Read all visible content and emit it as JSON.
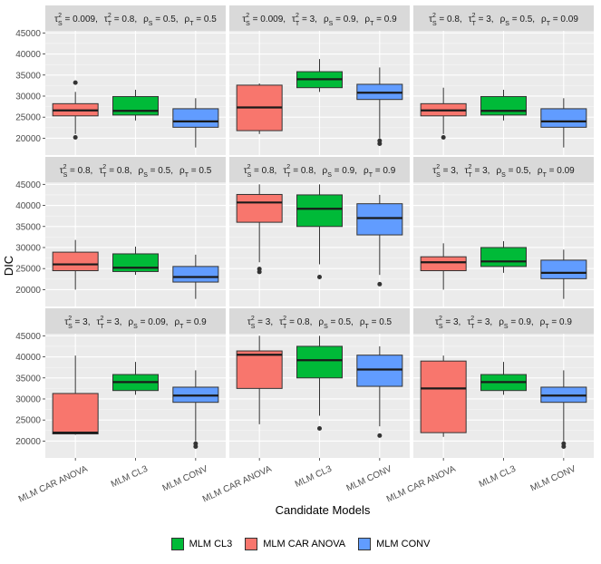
{
  "chart_data": {
    "type": "boxplot",
    "xlabel": "Candidate Models",
    "ylabel": "DIC",
    "ylim": [
      16000,
      45500
    ],
    "yticks": [
      20000,
      25000,
      30000,
      35000,
      40000,
      45000
    ],
    "categories": [
      "MLM CAR ANOVA",
      "MLM CL3",
      "MLM CONV"
    ],
    "colors": {
      "MLM CAR ANOVA": "#F8766D",
      "MLM CL3": "#00BA38",
      "MLM CONV": "#619CFF"
    },
    "legend": {
      "entries": [
        {
          "label": "MLM CL3",
          "color": "#00BA38"
        },
        {
          "label": "MLM CAR ANOVA",
          "color": "#F8766D"
        },
        {
          "label": "MLM CONV",
          "color": "#619CFF"
        }
      ],
      "position": "bottom"
    },
    "grid": true,
    "panels": [
      {
        "t2s": "0.009",
        "t2t": "0.8",
        "rs": "0.5",
        "rt": "0.5",
        "boxes": [
          {
            "category": "MLM CAR ANOVA",
            "min": 21000,
            "q1": 25300,
            "median": 26600,
            "q3": 28200,
            "max": 31000,
            "outliers": [
              20200,
              33200
            ]
          },
          {
            "category": "MLM CL3",
            "min": 24200,
            "q1": 25500,
            "median": 26500,
            "q3": 29900,
            "max": 31500,
            "outliers": []
          },
          {
            "category": "MLM CONV",
            "min": 17800,
            "q1": 22600,
            "median": 24000,
            "q3": 27000,
            "max": 29500,
            "outliers": []
          }
        ]
      },
      {
        "t2s": "0.009",
        "t2t": "3",
        "rs": "0.9",
        "rt": "0.9",
        "boxes": [
          {
            "category": "MLM CAR ANOVA",
            "min": 21000,
            "q1": 21800,
            "median": 27300,
            "q3": 32600,
            "max": 33000,
            "outliers": []
          },
          {
            "category": "MLM CL3",
            "min": 31000,
            "q1": 32000,
            "median": 34000,
            "q3": 35800,
            "max": 38800,
            "outliers": []
          },
          {
            "category": "MLM CONV",
            "min": 20000,
            "q1": 29200,
            "median": 30800,
            "q3": 32800,
            "max": 36800,
            "outliers": [
              18700,
              19400
            ]
          }
        ]
      },
      {
        "t2s": "0.8",
        "t2t": "3",
        "rs": "0.5",
        "rt": "0.09",
        "boxes": [
          {
            "category": "MLM CAR ANOVA",
            "min": 21000,
            "q1": 25300,
            "median": 26600,
            "q3": 28200,
            "max": 32000,
            "outliers": [
              20200
            ]
          },
          {
            "category": "MLM CL3",
            "min": 24200,
            "q1": 25500,
            "median": 26500,
            "q3": 29900,
            "max": 31500,
            "outliers": []
          },
          {
            "category": "MLM CONV",
            "min": 17800,
            "q1": 22600,
            "median": 24000,
            "q3": 27000,
            "max": 29500,
            "outliers": []
          }
        ]
      },
      {
        "t2s": "0.8",
        "t2t": "0.8",
        "rs": "0.5",
        "rt": "0.5",
        "boxes": [
          {
            "category": "MLM CAR ANOVA",
            "min": 20000,
            "q1": 24500,
            "median": 26000,
            "q3": 28900,
            "max": 31800,
            "outliers": []
          },
          {
            "category": "MLM CL3",
            "min": 23500,
            "q1": 24300,
            "median": 25200,
            "q3": 28500,
            "max": 30200,
            "outliers": []
          },
          {
            "category": "MLM CONV",
            "min": 17800,
            "q1": 21800,
            "median": 23000,
            "q3": 25500,
            "max": 28300,
            "outliers": []
          }
        ]
      },
      {
        "t2s": "0.8",
        "t2t": "0.8",
        "rs": "0.9",
        "rt": "0.9",
        "boxes": [
          {
            "category": "MLM CAR ANOVA",
            "min": 26500,
            "q1": 36000,
            "median": 40700,
            "q3": 42600,
            "max": 45000,
            "outliers": [
              24200,
              24900
            ]
          },
          {
            "category": "MLM CL3",
            "min": 26000,
            "q1": 35000,
            "median": 39200,
            "q3": 42500,
            "max": 45000,
            "outliers": [
              23000
            ]
          },
          {
            "category": "MLM CONV",
            "min": 23500,
            "q1": 33000,
            "median": 37000,
            "q3": 40400,
            "max": 42500,
            "outliers": [
              21300
            ]
          }
        ]
      },
      {
        "t2s": "3",
        "t2t": "3",
        "rs": "0.5",
        "rt": "0.09",
        "boxes": [
          {
            "category": "MLM CAR ANOVA",
            "min": 20000,
            "q1": 24500,
            "median": 26500,
            "q3": 27800,
            "max": 31000,
            "outliers": []
          },
          {
            "category": "MLM CL3",
            "min": 24000,
            "q1": 25500,
            "median": 26700,
            "q3": 30000,
            "max": 31500,
            "outliers": []
          },
          {
            "category": "MLM CONV",
            "min": 17800,
            "q1": 22600,
            "median": 24000,
            "q3": 27000,
            "max": 29500,
            "outliers": []
          }
        ]
      },
      {
        "t2s": "3",
        "t2t": "3",
        "rs": "0.09",
        "rt": "0.9",
        "boxes": [
          {
            "category": "MLM CAR ANOVA",
            "min": 21500,
            "q1": 21700,
            "median": 22000,
            "q3": 31300,
            "max": 40300,
            "outliers": []
          },
          {
            "category": "MLM CL3",
            "min": 31000,
            "q1": 32000,
            "median": 34000,
            "q3": 35800,
            "max": 38800,
            "outliers": []
          },
          {
            "category": "MLM CONV",
            "min": 20000,
            "q1": 29200,
            "median": 30800,
            "q3": 32800,
            "max": 36800,
            "outliers": [
              18700,
              19400
            ]
          }
        ]
      },
      {
        "t2s": "3",
        "t2t": "0.8",
        "rs": "0.5",
        "rt": "0.5",
        "boxes": [
          {
            "category": "MLM CAR ANOVA",
            "min": 24000,
            "q1": 32500,
            "median": 40500,
            "q3": 41400,
            "max": 45000,
            "outliers": []
          },
          {
            "category": "MLM CL3",
            "min": 26000,
            "q1": 35000,
            "median": 39200,
            "q3": 42500,
            "max": 45000,
            "outliers": [
              23000
            ]
          },
          {
            "category": "MLM CONV",
            "min": 23500,
            "q1": 33000,
            "median": 37000,
            "q3": 40400,
            "max": 42500,
            "outliers": [
              21300
            ]
          }
        ]
      },
      {
        "t2s": "3",
        "t2t": "3",
        "rs": "0.9",
        "rt": "0.9",
        "boxes": [
          {
            "category": "MLM CAR ANOVA",
            "min": 21000,
            "q1": 22000,
            "median": 32500,
            "q3": 39000,
            "max": 40300,
            "outliers": []
          },
          {
            "category": "MLM CL3",
            "min": 31000,
            "q1": 32000,
            "median": 34000,
            "q3": 35800,
            "max": 38800,
            "outliers": []
          },
          {
            "category": "MLM CONV",
            "min": 20000,
            "q1": 29200,
            "median": 30800,
            "q3": 32800,
            "max": 36800,
            "outliers": [
              18700,
              19400
            ]
          }
        ]
      }
    ]
  }
}
